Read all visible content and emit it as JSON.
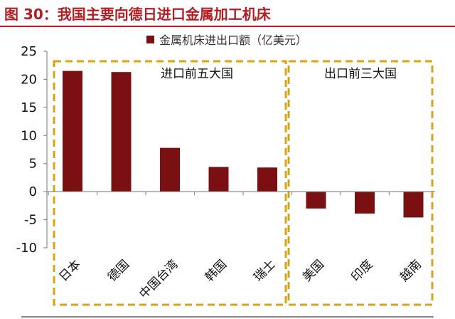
{
  "figure_title": "图 30：我国主要向德日进口金属加工机床",
  "colors": {
    "title": "#b11e23",
    "bar": "#7b1012",
    "group_box": "#d9a21b",
    "axis": "#8c8c8c"
  },
  "chart_data": {
    "type": "bar",
    "title": "",
    "xlabel": "",
    "ylabel": "",
    "ylim": [
      -10,
      25
    ],
    "yticks": [
      25,
      20,
      15,
      10,
      5,
      0,
      -5,
      -10
    ],
    "grid": false,
    "legend_position": "top",
    "categories": [
      "日本",
      "德国",
      "中国台湾",
      "韩国",
      "瑞士",
      "美国",
      "印度",
      "越南"
    ],
    "series": [
      {
        "name": "金属机床进出口额（亿美元）",
        "values": [
          21.5,
          21.3,
          7.8,
          4.4,
          4.3,
          -3.0,
          -3.9,
          -4.6
        ]
      }
    ],
    "groups": [
      {
        "label": "进口前五大国",
        "categories": [
          "日本",
          "德国",
          "中国台湾",
          "韩国",
          "瑞士"
        ]
      },
      {
        "label": "出口前三大国",
        "categories": [
          "美国",
          "印度",
          "越南"
        ]
      }
    ]
  }
}
